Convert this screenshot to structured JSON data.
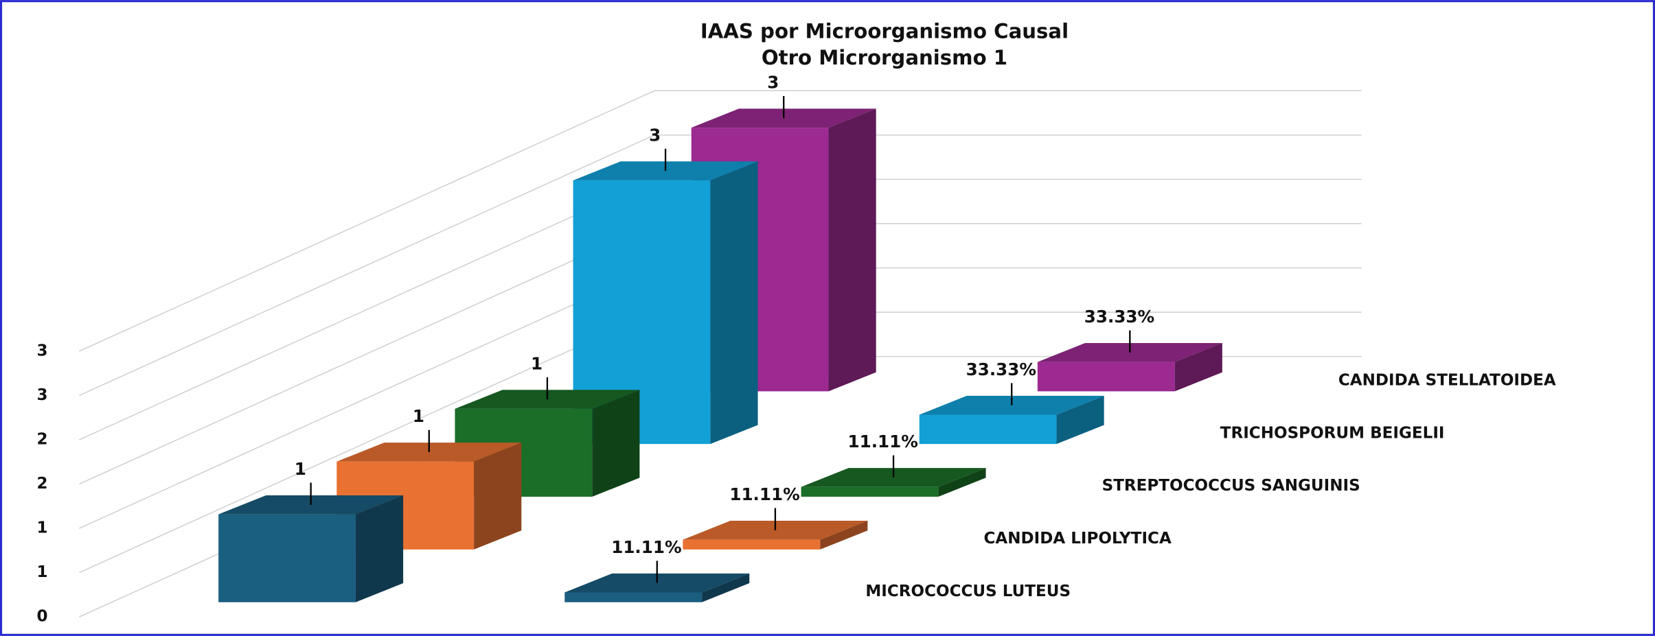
{
  "chart_data": {
    "type": "bar3d",
    "title": "IAAS por Microorganismo Causal",
    "subtitle": "Otro Microrganismo 1",
    "categories": [
      "MICROCOCCUS LUTEUS",
      "CANDIDA LIPOLYTICA",
      "STREPTOCOCCUS SANGUINIS",
      "TRICHOSPORUM BEIGELII",
      "CANDIDA STELLATOIDEA"
    ],
    "colors": [
      "#1a5e80",
      "#e97132",
      "#1b6e28",
      "#12a0d6",
      "#9c2a91"
    ],
    "series": [
      {
        "values": [
          1,
          1,
          1,
          3,
          3
        ]
      },
      {
        "values": [
          0.1111,
          0.1111,
          0.1111,
          0.3333,
          0.3333
        ],
        "value_labels": [
          "11.11%",
          "11.11%",
          "11.11%",
          "33.33%",
          "33.33%"
        ]
      }
    ],
    "ylim": [
      0,
      3
    ],
    "yticks": [
      0,
      {
        "value": 0.5,
        "label": "1"
      },
      1,
      {
        "value": 1.5,
        "label": "2"
      },
      2,
      {
        "value": 2.5,
        "label": "3"
      },
      3
    ],
    "grid": true
  }
}
